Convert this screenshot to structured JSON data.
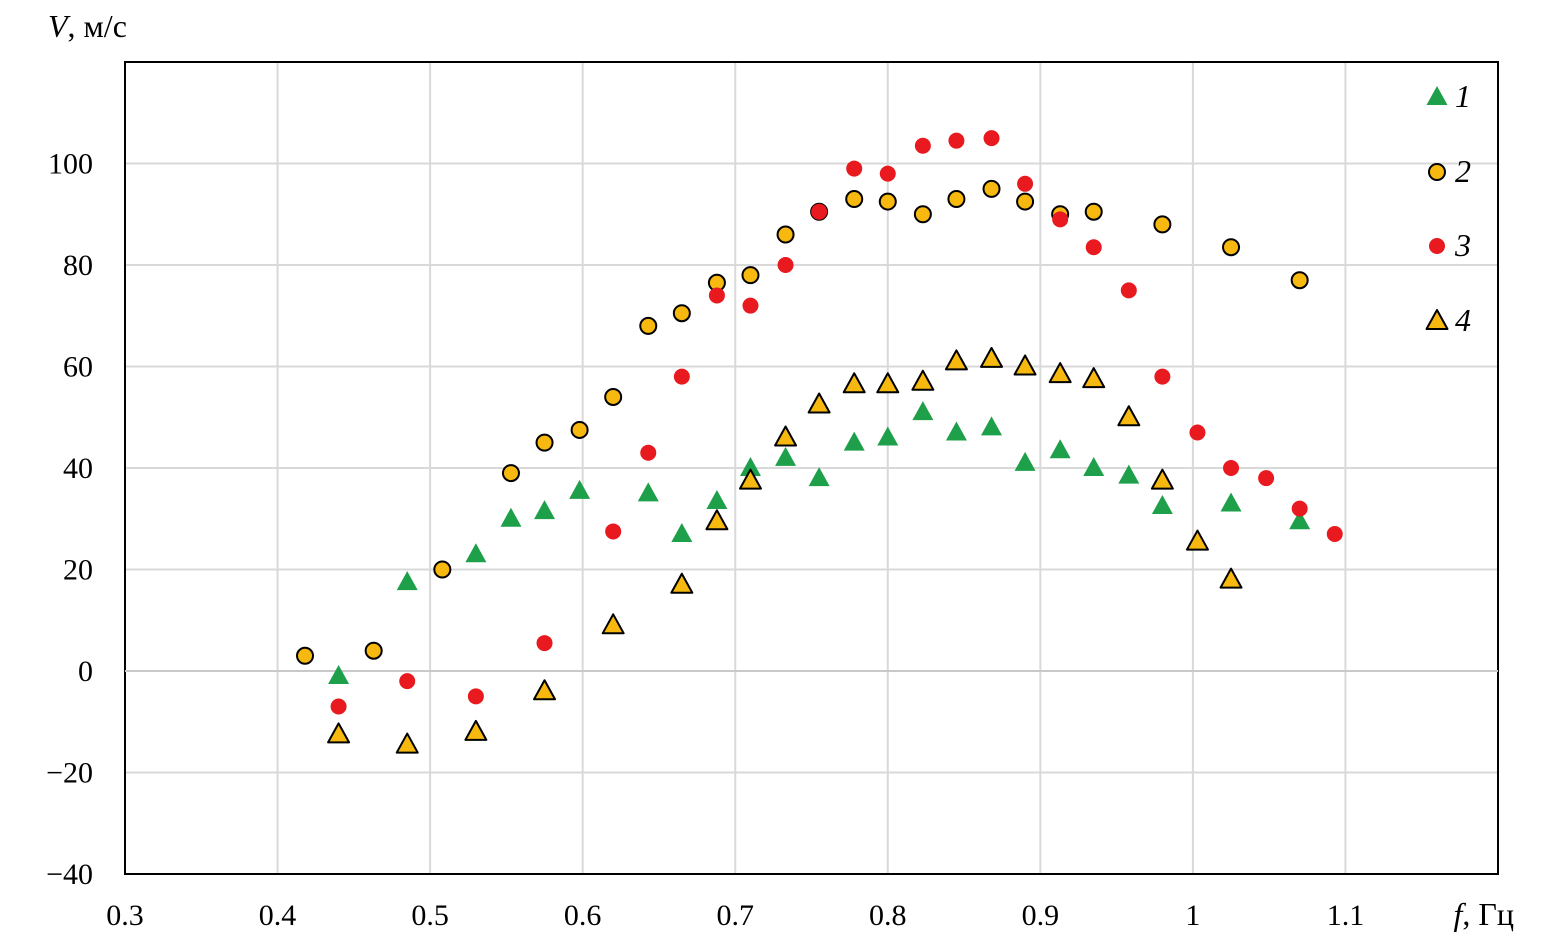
{
  "chart_data": {
    "type": "scatter",
    "xlabel_var": "f",
    "xlabel_unit": ", Гц",
    "ylabel_var": "V",
    "ylabel_unit": ", м/с",
    "xlim": [
      0.3,
      1.2
    ],
    "ylim": [
      -40,
      120
    ],
    "xticks": [
      {
        "value": 0.3,
        "label": "0.3"
      },
      {
        "value": 0.4,
        "label": "0.4"
      },
      {
        "value": 0.5,
        "label": "0.5"
      },
      {
        "value": 0.6,
        "label": "0.6"
      },
      {
        "value": 0.7,
        "label": "0.7"
      },
      {
        "value": 0.8,
        "label": "0.8"
      },
      {
        "value": 0.9,
        "label": "0.9"
      },
      {
        "value": 1.0,
        "label": "1"
      },
      {
        "value": 1.1,
        "label": "1.1"
      }
    ],
    "yticks": [
      {
        "value": -40,
        "label": "−40"
      },
      {
        "value": -20,
        "label": "−20"
      },
      {
        "value": 0,
        "label": "0"
      },
      {
        "value": 20,
        "label": "20"
      },
      {
        "value": 40,
        "label": "40"
      },
      {
        "value": 60,
        "label": "60"
      },
      {
        "value": 80,
        "label": "80"
      },
      {
        "value": 100,
        "label": "100"
      }
    ],
    "grid": true,
    "legend_position": "top-right",
    "series": [
      {
        "name": "1",
        "marker": "triangle",
        "fill": "#1ea04a",
        "stroke": "#1ea04a",
        "points": [
          [
            0.44,
            -1
          ],
          [
            0.485,
            17.5
          ],
          [
            0.53,
            23
          ],
          [
            0.553,
            30
          ],
          [
            0.575,
            31.5
          ],
          [
            0.598,
            35.5
          ],
          [
            0.643,
            35
          ],
          [
            0.665,
            27
          ],
          [
            0.688,
            33.5
          ],
          [
            0.71,
            40
          ],
          [
            0.733,
            42
          ],
          [
            0.755,
            38
          ],
          [
            0.778,
            45
          ],
          [
            0.8,
            46
          ],
          [
            0.823,
            51
          ],
          [
            0.845,
            47
          ],
          [
            0.868,
            48
          ],
          [
            0.89,
            41
          ],
          [
            0.913,
            43.5
          ],
          [
            0.935,
            40
          ],
          [
            0.958,
            38.5
          ],
          [
            0.98,
            32.5
          ],
          [
            1.025,
            33
          ],
          [
            1.07,
            29.5
          ]
        ]
      },
      {
        "name": "2",
        "marker": "circle",
        "fill": "#f7b90f",
        "stroke": "#000000",
        "points": [
          [
            0.418,
            3
          ],
          [
            0.463,
            4
          ],
          [
            0.508,
            20
          ],
          [
            0.553,
            39
          ],
          [
            0.575,
            45
          ],
          [
            0.598,
            47.5
          ],
          [
            0.62,
            54
          ],
          [
            0.643,
            68
          ],
          [
            0.665,
            70.5
          ],
          [
            0.688,
            76.5
          ],
          [
            0.71,
            78
          ],
          [
            0.733,
            86
          ],
          [
            0.755,
            90.5
          ],
          [
            0.778,
            93
          ],
          [
            0.8,
            92.5
          ],
          [
            0.823,
            90
          ],
          [
            0.845,
            93
          ],
          [
            0.868,
            95
          ],
          [
            0.89,
            92.5
          ],
          [
            0.913,
            90
          ],
          [
            0.935,
            90.5
          ],
          [
            0.98,
            88
          ],
          [
            1.025,
            83.5
          ],
          [
            1.07,
            77
          ]
        ]
      },
      {
        "name": "3",
        "marker": "circle",
        "fill": "#e8191f",
        "stroke": "#e8191f",
        "points": [
          [
            0.44,
            -7
          ],
          [
            0.485,
            -2
          ],
          [
            0.53,
            -5
          ],
          [
            0.575,
            5.5
          ],
          [
            0.62,
            27.5
          ],
          [
            0.643,
            43
          ],
          [
            0.665,
            58
          ],
          [
            0.688,
            74
          ],
          [
            0.71,
            72
          ],
          [
            0.733,
            80
          ],
          [
            0.755,
            90.5
          ],
          [
            0.778,
            99
          ],
          [
            0.8,
            98
          ],
          [
            0.823,
            103.5
          ],
          [
            0.845,
            104.5
          ],
          [
            0.868,
            105
          ],
          [
            0.89,
            96
          ],
          [
            0.913,
            89
          ],
          [
            0.935,
            83.5
          ],
          [
            0.958,
            75
          ],
          [
            0.98,
            58
          ],
          [
            1.003,
            47
          ],
          [
            1.025,
            40
          ],
          [
            1.048,
            38
          ],
          [
            1.07,
            32
          ],
          [
            1.093,
            27
          ]
        ]
      },
      {
        "name": "4",
        "marker": "triangle",
        "fill": "#f7b90f",
        "stroke": "#000000",
        "points": [
          [
            0.44,
            -12.5
          ],
          [
            0.485,
            -14.5
          ],
          [
            0.53,
            -12
          ],
          [
            0.575,
            -4
          ],
          [
            0.62,
            9
          ],
          [
            0.665,
            17
          ],
          [
            0.688,
            29.5
          ],
          [
            0.71,
            37.5
          ],
          [
            0.733,
            46
          ],
          [
            0.755,
            52.5
          ],
          [
            0.778,
            56.5
          ],
          [
            0.8,
            56.5
          ],
          [
            0.823,
            57
          ],
          [
            0.845,
            61
          ],
          [
            0.868,
            61.5
          ],
          [
            0.89,
            60
          ],
          [
            0.913,
            58.5
          ],
          [
            0.935,
            57.5
          ],
          [
            0.958,
            50
          ],
          [
            0.98,
            37.5
          ],
          [
            1.003,
            25.5
          ],
          [
            1.025,
            18
          ]
        ]
      }
    ]
  }
}
